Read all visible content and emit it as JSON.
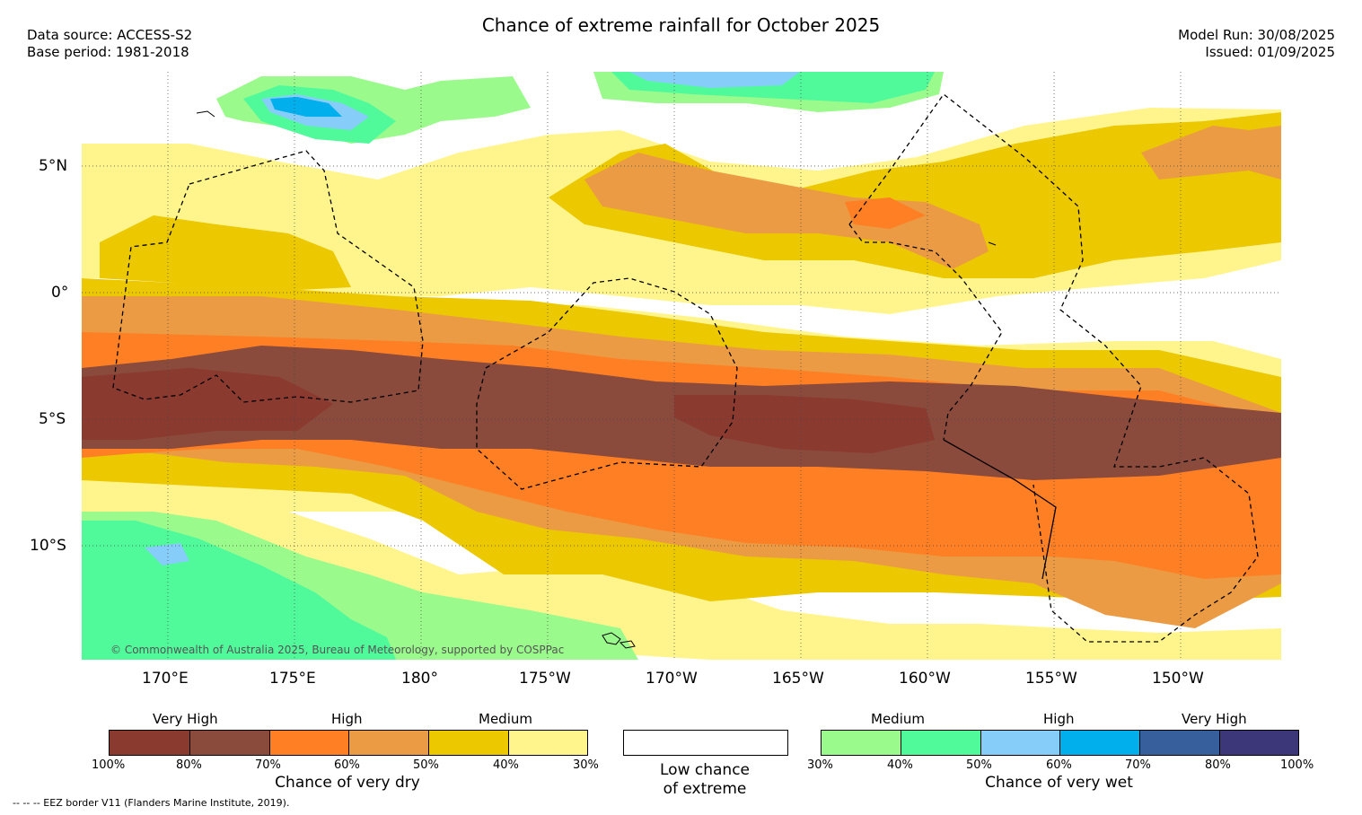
{
  "header": {
    "title": "Chance of extreme rainfall for October 2025",
    "data_source": "Data source: ACCESS-S2",
    "base_period": "Base period: 1981-2018",
    "model_run": "Model Run: 30/08/2025",
    "issued": "Issued: 01/09/2025"
  },
  "map": {
    "lat_labels": [
      "5°N",
      "0°",
      "5°S",
      "10°S"
    ],
    "lon_labels": [
      "170°E",
      "175°E",
      "180°",
      "175°W",
      "170°W",
      "165°W",
      "160°W",
      "155°W",
      "150°W"
    ],
    "copyright": "© Commonwealth of Australia 2025, Bureau of Meteorology, supported by COSPPac",
    "gridlines": true
  },
  "legend": {
    "dry": {
      "headings": [
        "Very High",
        "High",
        "Medium"
      ],
      "ticks": [
        "100%",
        "80%",
        "70%",
        "60%",
        "50%",
        "40%",
        "30%"
      ],
      "colors": [
        "#8b3a30",
        "#8a4a3c",
        "#ff7f24",
        "#eb9b44",
        "#ebc800",
        "#fff58c"
      ],
      "caption": "Chance of very dry"
    },
    "low": {
      "line1": "Low chance",
      "line2": "of extreme"
    },
    "wet": {
      "headings": [
        "Medium",
        "High",
        "Very High"
      ],
      "ticks": [
        "30%",
        "40%",
        "50%",
        "60%",
        "70%",
        "80%",
        "100%"
      ],
      "colors": [
        "#9bfa8c",
        "#50fa9b",
        "#87cdfa",
        "#00afeb",
        "#375f9b",
        "#3c3778"
      ],
      "caption": "Chance of very wet"
    }
  },
  "footer": {
    "eez_note": "-- -- -- EEZ border V11 (Flanders Marine Institute, 2019)."
  }
}
